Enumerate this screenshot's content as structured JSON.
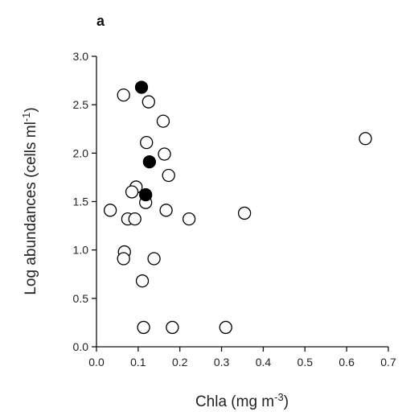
{
  "chart_data": {
    "type": "scatter",
    "panel_label": "a",
    "xlabel_main": "Chla (mg m",
    "xlabel_sup": "-3",
    "xlabel_end": ")",
    "ylabel_main": "Log abundances (cells ml",
    "ylabel_sup": "-1",
    "ylabel_end": ")",
    "xlim": [
      0.0,
      0.7
    ],
    "ylim": [
      0.0,
      3.0
    ],
    "xticks": [
      "0.0",
      "0.1",
      "0.2",
      "0.3",
      "0.4",
      "0.5",
      "0.6",
      "0.7"
    ],
    "yticks": [
      "0.0",
      "0.5",
      "1.0",
      "1.5",
      "2.0",
      "2.5",
      "3.0"
    ],
    "grid": false,
    "series": [
      {
        "marker": "open-circle",
        "color": "#000000",
        "points": [
          {
            "x": 0.065,
            "y": 2.6
          },
          {
            "x": 0.125,
            "y": 2.53
          },
          {
            "x": 0.16,
            "y": 2.33
          },
          {
            "x": 0.12,
            "y": 2.11
          },
          {
            "x": 0.163,
            "y": 1.99
          },
          {
            "x": 0.645,
            "y": 2.15
          },
          {
            "x": 0.173,
            "y": 1.77
          },
          {
            "x": 0.095,
            "y": 1.65
          },
          {
            "x": 0.085,
            "y": 1.6
          },
          {
            "x": 0.118,
            "y": 1.49
          },
          {
            "x": 0.033,
            "y": 1.41
          },
          {
            "x": 0.167,
            "y": 1.41
          },
          {
            "x": 0.355,
            "y": 1.38
          },
          {
            "x": 0.075,
            "y": 1.32
          },
          {
            "x": 0.092,
            "y": 1.32
          },
          {
            "x": 0.222,
            "y": 1.32
          },
          {
            "x": 0.067,
            "y": 0.98
          },
          {
            "x": 0.065,
            "y": 0.91
          },
          {
            "x": 0.138,
            "y": 0.91
          },
          {
            "x": 0.11,
            "y": 0.68
          },
          {
            "x": 0.113,
            "y": 0.2
          },
          {
            "x": 0.182,
            "y": 0.2
          },
          {
            "x": 0.31,
            "y": 0.2
          }
        ]
      },
      {
        "marker": "filled-circle",
        "color": "#000000",
        "points": [
          {
            "x": 0.108,
            "y": 2.68
          },
          {
            "x": 0.127,
            "y": 1.91
          },
          {
            "x": 0.118,
            "y": 1.57
          }
        ]
      }
    ]
  }
}
